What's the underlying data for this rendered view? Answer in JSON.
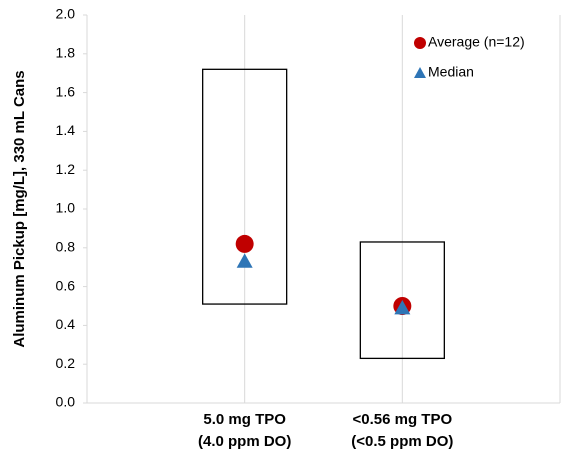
{
  "chart_data": {
    "type": "range-marker",
    "y_label": "Aluminum Pickup [mg/L], 330 mL Cans",
    "categories": [
      [
        "5.0 mg TPO",
        "(4.0 ppm DO)"
      ],
      [
        "<0.56 mg TPO",
        "(<0.5 ppm DO)"
      ]
    ],
    "ranges": {
      "low": [
        0.51,
        0.23
      ],
      "high": [
        1.72,
        0.83
      ]
    },
    "series": [
      {
        "name": "Average (n=12)",
        "color": "#c00000",
        "marker": "circle",
        "values": [
          0.82,
          0.5
        ]
      },
      {
        "name": "Median",
        "color": "#2e75b6",
        "marker": "triangle",
        "values": [
          0.73,
          0.49
        ]
      }
    ],
    "ylim": [
      0,
      2
    ],
    "yticks": [
      {
        "value": 0,
        "label": "0.0"
      },
      {
        "value": 0.2,
        "label": "0.2"
      },
      {
        "value": 0.4,
        "label": "0.4"
      },
      {
        "value": 0.6,
        "label": "0.6"
      },
      {
        "value": 0.8,
        "label": "0.8"
      },
      {
        "value": 1,
        "label": "1.0"
      },
      {
        "value": 1.2,
        "label": "1.2"
      },
      {
        "value": 1.4,
        "label": "1.4"
      },
      {
        "value": 1.6,
        "label": "1.6"
      },
      {
        "value": 1.8,
        "label": "1.8"
      },
      {
        "value": 2,
        "label": "2.0"
      }
    ],
    "grid": true
  }
}
